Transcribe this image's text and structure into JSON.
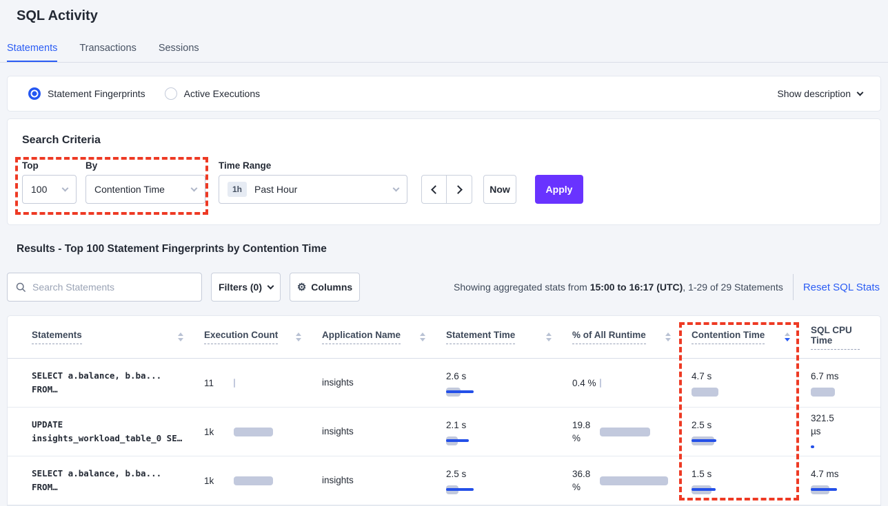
{
  "page": {
    "title": "SQL Activity"
  },
  "tabs": [
    {
      "label": "Statements",
      "active": true
    },
    {
      "label": "Transactions",
      "active": false
    },
    {
      "label": "Sessions",
      "active": false
    }
  ],
  "view_bar": {
    "options": [
      {
        "label": "Statement Fingerprints",
        "selected": true
      },
      {
        "label": "Active Executions",
        "selected": false
      }
    ],
    "show_description": "Show description"
  },
  "search_criteria": {
    "title": "Search Criteria",
    "top": {
      "label": "Top",
      "value": "100"
    },
    "by": {
      "label": "By",
      "value": "Contention Time"
    },
    "time_range": {
      "label": "Time Range",
      "badge": "1h",
      "value": "Past Hour"
    },
    "now_label": "Now",
    "apply_label": "Apply"
  },
  "results": {
    "title": "Results - Top 100 Statement Fingerprints by Contention Time",
    "search_placeholder": "Search Statements",
    "filters_label": "Filters (0)",
    "columns_label": "Columns",
    "stats_prefix": "Showing aggregated stats from ",
    "stats_bold": "15:00 to 16:17 (UTC)",
    "stats_suffix": ", 1-29 of 29 Statements",
    "reset_label": "Reset SQL Stats"
  },
  "colors": {
    "accent_blue": "#2a5cf4",
    "apply_purple": "#6933ff",
    "annotation_red": "#ee3a24",
    "bar_gray": "#c2c9dd",
    "bar_blue": "#2450e8"
  },
  "table": {
    "columns": [
      {
        "label": "Statements",
        "sort": "none",
        "has_sort_icon": true
      },
      {
        "label": "Execution Count",
        "sort": "none",
        "has_sort_icon": true
      },
      {
        "label": "Application Name",
        "sort": "none",
        "has_sort_icon": true
      },
      {
        "label": "Statement Time",
        "sort": "none",
        "has_sort_icon": true
      },
      {
        "label": "% of All Runtime",
        "sort": "none",
        "has_sort_icon": true
      },
      {
        "label": "Contention Time",
        "sort": "desc",
        "has_sort_icon": true
      },
      {
        "label": "SQL CPU Time",
        "sort": "none",
        "has_sort_icon": false
      }
    ],
    "rows": [
      {
        "statement": [
          "SELECT a.balance, b.ba...",
          "FROM…"
        ],
        "execution_count": {
          "text": "11",
          "gray": 2,
          "blue": 0
        },
        "application": "insights",
        "statement_time": {
          "text": "2.6 s",
          "gray": 21,
          "blue": 40
        },
        "pct_runtime": {
          "lines": [
            "0.4 %"
          ],
          "gray": 2,
          "blue": 0
        },
        "contention_time": {
          "text": "4.7 s",
          "gray": 39,
          "blue": 0
        },
        "sql_cpu": {
          "lines": [
            "6.7 ms"
          ],
          "gray": 35,
          "blue": 0
        }
      },
      {
        "statement": [
          "UPDATE",
          "insights_workload_table_0 SE…"
        ],
        "execution_count": {
          "text": "1k",
          "gray": 57,
          "blue": 0
        },
        "application": "insights",
        "statement_time": {
          "text": "2.1 s",
          "gray": 17,
          "blue": 33
        },
        "pct_runtime": {
          "lines": [
            "19.8",
            "%"
          ],
          "gray": 73,
          "blue": 0
        },
        "contention_time": {
          "text": "2.5 s",
          "gray": 33,
          "blue": 36
        },
        "sql_cpu": {
          "lines": [
            "321.5",
            "µs"
          ],
          "gray": 0,
          "blue": 5
        }
      },
      {
        "statement": [
          "SELECT a.balance, b.ba...",
          "FROM…"
        ],
        "execution_count": {
          "text": "1k",
          "gray": 57,
          "blue": 0
        },
        "application": "insights",
        "statement_time": {
          "text": "2.5 s",
          "gray": 18,
          "blue": 40
        },
        "pct_runtime": {
          "lines": [
            "36.8",
            "%"
          ],
          "gray": 99,
          "blue": 0
        },
        "contention_time": {
          "text": "1.5 s",
          "gray": 29,
          "blue": 35
        },
        "sql_cpu": {
          "lines": [
            "4.7 ms"
          ],
          "gray": 27,
          "blue": 38
        }
      }
    ]
  }
}
